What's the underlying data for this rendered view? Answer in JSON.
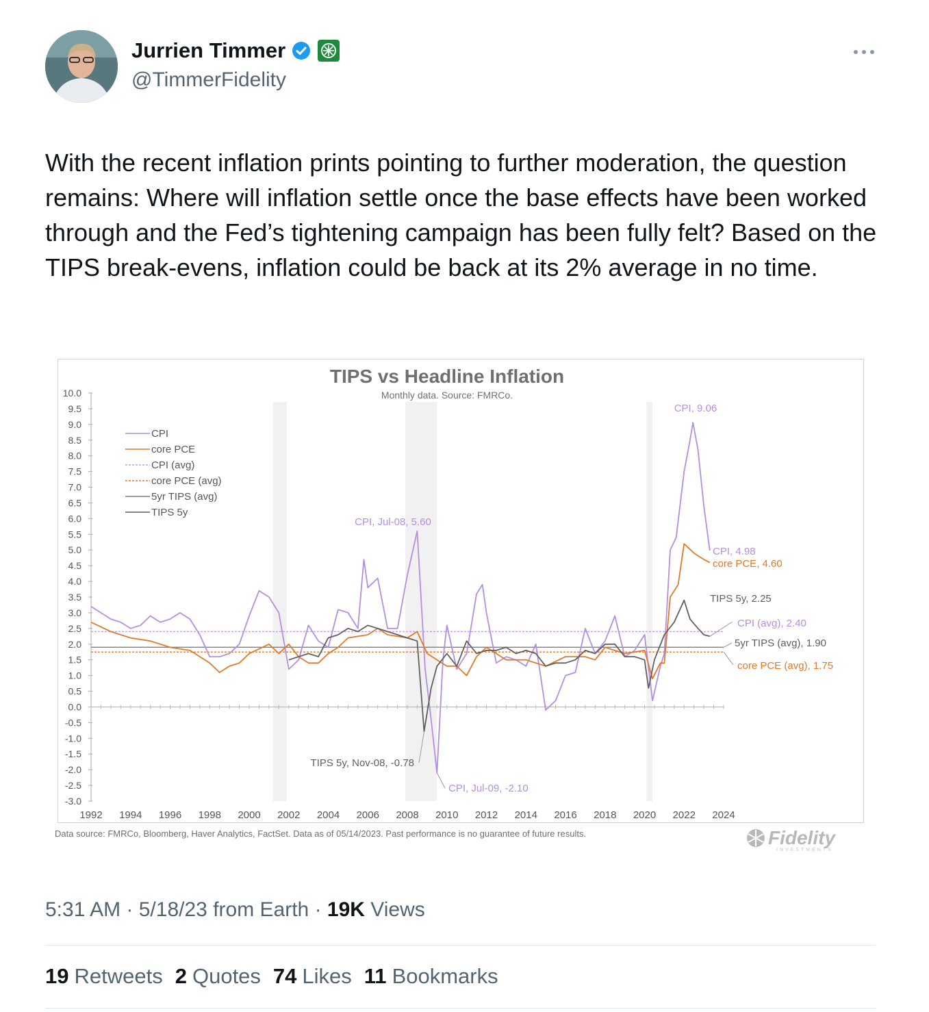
{
  "author": {
    "name": "Jurrien Timmer",
    "handle": "@TimmerFidelity",
    "avatar_icon": "person-avatar",
    "verified_color": "#1d9bf0",
    "affiliation_badge_color": "#1c8a3a"
  },
  "tweet": {
    "text": "With the recent inflation prints pointing to further moderation, the question remains: Where will inflation settle once the base effects have been worked through and the Fed’s tightening campaign has been fully felt? Based on the TIPS break-evens, inflation could be back at its 2% average in no time."
  },
  "chart_data": {
    "type": "line",
    "title": "TIPS vs Headline Inflation",
    "subtitle": "Monthly data. Source: FMRCo.",
    "xlabel": "",
    "ylabel": "",
    "xlim": [
      1992,
      2024
    ],
    "ylim": [
      -3.0,
      10.0
    ],
    "x_ticks": [
      "1992",
      "1994",
      "1996",
      "1998",
      "2000",
      "2002",
      "2004",
      "2006",
      "2008",
      "2010",
      "2012",
      "2014",
      "2016",
      "2018",
      "2020",
      "2022",
      "2024"
    ],
    "y_ticks": [
      "10.0",
      "9.5",
      "9.0",
      "8.5",
      "8.0",
      "7.5",
      "7.0",
      "6.5",
      "6.0",
      "5.5",
      "5.0",
      "4.5",
      "4.0",
      "3.5",
      "3.0",
      "2.5",
      "2.0",
      "1.5",
      "1.0",
      "0.5",
      "0.0",
      "-0.5",
      "-1.0",
      "-1.5",
      "-2.0",
      "-2.5",
      "-3.0"
    ],
    "legend_position": "top-left",
    "recession_shading": [
      [
        2001.2,
        2001.9
      ],
      [
        2007.9,
        2009.5
      ],
      [
        2020.1,
        2020.4
      ]
    ],
    "series": [
      {
        "name": "CPI",
        "color": "#b48ee0",
        "style": "solid",
        "x": [
          1992.0,
          1992.5,
          1993.0,
          1993.5,
          1994.0,
          1994.5,
          1995.0,
          1995.5,
          1996.0,
          1996.5,
          1997.0,
          1997.5,
          1998.0,
          1998.5,
          1999.0,
          1999.5,
          2000.0,
          2000.5,
          2001.0,
          2001.5,
          2002.0,
          2002.5,
          2003.0,
          2003.5,
          2004.0,
          2004.5,
          2005.0,
          2005.5,
          2005.8,
          2006.0,
          2006.5,
          2007.0,
          2007.5,
          2008.0,
          2008.5,
          2008.9,
          2009.2,
          2009.5,
          2009.8,
          2010.0,
          2010.5,
          2011.0,
          2011.5,
          2011.8,
          2012.0,
          2012.5,
          2013.0,
          2013.5,
          2014.0,
          2014.5,
          2015.0,
          2015.5,
          2016.0,
          2016.5,
          2017.0,
          2017.5,
          2018.0,
          2018.5,
          2019.0,
          2019.5,
          2020.0,
          2020.4,
          2020.8,
          2021.0,
          2021.3,
          2021.6,
          2022.0,
          2022.3,
          2022.45,
          2022.7,
          2023.0,
          2023.3
        ],
        "y": [
          3.2,
          3.0,
          2.8,
          2.7,
          2.5,
          2.6,
          2.9,
          2.7,
          2.8,
          3.0,
          2.8,
          2.3,
          1.6,
          1.6,
          1.7,
          2.0,
          2.9,
          3.7,
          3.5,
          3.0,
          1.2,
          1.5,
          2.6,
          2.1,
          1.9,
          3.1,
          3.0,
          2.5,
          4.7,
          3.8,
          4.1,
          2.5,
          2.5,
          4.2,
          5.6,
          1.2,
          -0.4,
          -2.1,
          1.5,
          2.6,
          1.2,
          1.7,
          3.6,
          3.9,
          3.0,
          1.4,
          1.6,
          1.5,
          1.3,
          2.0,
          -0.1,
          0.2,
          1.0,
          1.1,
          2.5,
          1.7,
          2.1,
          2.9,
          1.6,
          1.8,
          2.3,
          0.2,
          1.3,
          1.7,
          5.0,
          5.4,
          7.5,
          8.5,
          9.06,
          8.2,
          6.4,
          4.98
        ]
      },
      {
        "name": "core PCE",
        "color": "#e07a27",
        "style": "solid",
        "x": [
          1992.0,
          1993.0,
          1994.0,
          1995.0,
          1996.0,
          1997.0,
          1998.0,
          1998.5,
          1999.0,
          1999.5,
          2000.0,
          2001.0,
          2001.5,
          2002.0,
          2002.5,
          2003.0,
          2003.5,
          2004.0,
          2004.5,
          2005.0,
          2006.0,
          2006.5,
          2007.0,
          2008.0,
          2008.5,
          2009.0,
          2009.5,
          2010.0,
          2010.5,
          2011.0,
          2011.5,
          2012.0,
          2013.0,
          2014.0,
          2015.0,
          2016.0,
          2017.0,
          2017.5,
          2018.0,
          2019.0,
          2020.0,
          2020.4,
          2020.8,
          2021.0,
          2021.3,
          2021.7,
          2022.0,
          2022.5,
          2023.0,
          2023.3
        ],
        "y": [
          2.7,
          2.4,
          2.2,
          2.1,
          1.9,
          1.8,
          1.4,
          1.1,
          1.3,
          1.4,
          1.7,
          2.0,
          1.7,
          2.0,
          1.6,
          1.4,
          1.4,
          1.7,
          1.9,
          2.2,
          2.3,
          2.5,
          2.3,
          2.2,
          2.4,
          1.7,
          1.5,
          1.3,
          1.3,
          1.0,
          1.6,
          1.9,
          1.5,
          1.5,
          1.3,
          1.6,
          1.6,
          1.5,
          1.9,
          1.7,
          1.8,
          0.9,
          1.4,
          1.4,
          3.5,
          3.9,
          5.2,
          4.9,
          4.7,
          4.6
        ]
      },
      {
        "name": "TIPS 5y",
        "color": "#5f5f5f",
        "style": "solid",
        "x": [
          2002.0,
          2003.0,
          2003.5,
          2004.0,
          2004.5,
          2005.0,
          2005.5,
          2006.0,
          2006.5,
          2007.0,
          2007.5,
          2008.0,
          2008.5,
          2008.85,
          2009.2,
          2009.5,
          2010.0,
          2010.5,
          2011.0,
          2011.5,
          2012.0,
          2012.5,
          2013.0,
          2013.5,
          2014.0,
          2014.5,
          2015.0,
          2015.5,
          2016.0,
          2016.5,
          2017.0,
          2017.5,
          2018.0,
          2018.5,
          2019.0,
          2019.5,
          2020.0,
          2020.2,
          2020.5,
          2021.0,
          2021.5,
          2022.0,
          2022.3,
          2022.7,
          2023.0,
          2023.3
        ],
        "y": [
          1.5,
          1.7,
          1.6,
          2.2,
          2.3,
          2.5,
          2.4,
          2.6,
          2.5,
          2.4,
          2.3,
          2.2,
          2.1,
          -0.78,
          0.6,
          1.3,
          1.7,
          1.3,
          2.1,
          1.7,
          1.8,
          1.8,
          1.9,
          1.7,
          1.8,
          1.7,
          1.3,
          1.4,
          1.4,
          1.5,
          1.8,
          1.7,
          2.0,
          2.0,
          1.6,
          1.6,
          1.5,
          0.6,
          1.5,
          2.3,
          2.7,
          3.4,
          2.8,
          2.5,
          2.3,
          2.25
        ]
      }
    ],
    "reference_lines": [
      {
        "name": "CPI (avg)",
        "value": 2.4,
        "color": "#c79ae8",
        "style": "dashed"
      },
      {
        "name": "5yr TIPS (avg)",
        "value": 1.9,
        "color": "#7f7f7f",
        "style": "solid"
      },
      {
        "name": "core PCE (avg)",
        "value": 1.75,
        "color": "#e07a27",
        "style": "dashed"
      }
    ],
    "annotations": [
      {
        "text": "CPI, 9.06",
        "color": "#b48ee0"
      },
      {
        "text": "CPI, Jul-08, 5.60",
        "color": "#b48ee0"
      },
      {
        "text": "CPI, 4.98",
        "color": "#b48ee0"
      },
      {
        "text": "core PCE, 4.60",
        "color": "#e07a27"
      },
      {
        "text": "TIPS 5y, 2.25",
        "color": "#5f5f5f"
      },
      {
        "text": "CPI (avg), 2.40",
        "color": "#b48ee0"
      },
      {
        "text": "5yr TIPS (avg), 1.90",
        "color": "#5f5f5f"
      },
      {
        "text": "core PCE (avg), 1.75",
        "color": "#e07a27"
      },
      {
        "text": "TIPS 5y, Nov-08, -0.78",
        "color": "#5f5f5f"
      },
      {
        "text": "CPI, Jul-09, -2.10",
        "color": "#b48ee0"
      }
    ],
    "legend": [
      {
        "label": "CPI",
        "color": "#b48ee0",
        "style": "solid"
      },
      {
        "label": "core PCE",
        "color": "#e07a27",
        "style": "solid"
      },
      {
        "label": "CPI (avg)",
        "color": "#c79ae8",
        "style": "dashed"
      },
      {
        "label": "core PCE (avg)",
        "color": "#e07a27",
        "style": "dashed"
      },
      {
        "label": "5yr TIPS (avg)",
        "color": "#7f7f7f",
        "style": "solid"
      },
      {
        "label": "TIPS 5y",
        "color": "#5f5f5f",
        "style": "solid"
      }
    ],
    "footnote": "Data source: FMRCo, Bloomberg, Haver Analytics, FactSet. Data as of 05/14/2023. Past performance is no guarantee of future results.",
    "logo_text": "Fidelity",
    "logo_subtext": "INVESTMENTS"
  },
  "meta": {
    "time": "5:31 AM",
    "date": "5/18/23",
    "source": "from Earth",
    "views_count": "19K",
    "views_label": "Views"
  },
  "stats": {
    "retweets_count": "19",
    "retweets_label": "Retweets",
    "quotes_count": "2",
    "quotes_label": "Quotes",
    "likes_count": "74",
    "likes_label": "Likes",
    "bookmarks_count": "11",
    "bookmarks_label": "Bookmarks"
  }
}
